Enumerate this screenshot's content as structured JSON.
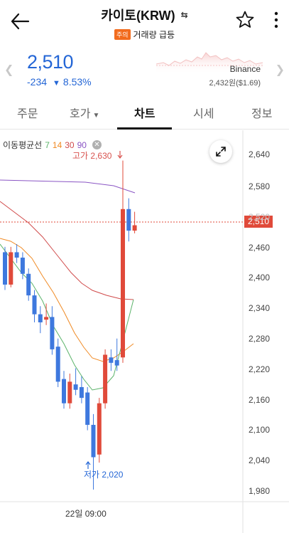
{
  "header": {
    "title": "카이토(KRW)",
    "warning_badge": "주의",
    "subtitle": "거래량 급등"
  },
  "price_panel": {
    "price": "2,510",
    "change": "-234",
    "change_percent": "8.53%",
    "exchange": "Binance",
    "exchange_price": "2,432원($1.69)",
    "color_down": "#2466d6"
  },
  "tabs": [
    {
      "label": "주문",
      "active": false
    },
    {
      "label": "호가",
      "active": false,
      "has_dropdown": true
    },
    {
      "label": "차트",
      "active": true
    },
    {
      "label": "시세",
      "active": false
    },
    {
      "label": "정보",
      "active": false
    }
  ],
  "chart": {
    "ma_legend": {
      "title": "이동평균선",
      "periods": [
        "7",
        "14",
        "30",
        "90"
      ]
    },
    "high_label": "고가 2,630",
    "low_label": "저가 2,020",
    "current_price_tag": "2,510",
    "y_ticks": [
      "2,640",
      "2,580",
      "2,520",
      "2,460",
      "2,400",
      "2,340",
      "2,280",
      "2,220",
      "2,160",
      "2,100",
      "2,040",
      "1,980"
    ],
    "x_tick": "22일 09:00"
  },
  "chart_data": {
    "type": "candlestick",
    "ylim": [
      1960,
      2680
    ],
    "up_color": "#e04a3a",
    "down_color": "#3e78de",
    "candles": [
      {
        "o": 2460,
        "c": 2400,
        "h": 2470,
        "l": 2390
      },
      {
        "o": 2400,
        "c": 2460,
        "h": 2470,
        "l": 2395
      },
      {
        "o": 2460,
        "c": 2450,
        "h": 2475,
        "l": 2440
      },
      {
        "o": 2450,
        "c": 2420,
        "h": 2460,
        "l": 2410
      },
      {
        "o": 2420,
        "c": 2380,
        "h": 2430,
        "l": 2370
      },
      {
        "o": 2380,
        "c": 2345,
        "h": 2390,
        "l": 2330
      },
      {
        "o": 2345,
        "c": 2330,
        "h": 2360,
        "l": 2310
      },
      {
        "o": 2335,
        "c": 2340,
        "h": 2365,
        "l": 2325
      },
      {
        "o": 2340,
        "c": 2280,
        "h": 2360,
        "l": 2270
      },
      {
        "o": 2285,
        "c": 2220,
        "h": 2300,
        "l": 2210
      },
      {
        "o": 2225,
        "c": 2180,
        "h": 2240,
        "l": 2170
      },
      {
        "o": 2180,
        "c": 2220,
        "h": 2235,
        "l": 2170
      },
      {
        "o": 2215,
        "c": 2205,
        "h": 2245,
        "l": 2195
      },
      {
        "o": 2210,
        "c": 2190,
        "h": 2230,
        "l": 2180
      },
      {
        "o": 2200,
        "c": 2140,
        "h": 2210,
        "l": 2130
      },
      {
        "o": 2140,
        "c": 2080,
        "h": 2160,
        "l": 2020
      },
      {
        "o": 2085,
        "c": 2180,
        "h": 2190,
        "l": 2070
      },
      {
        "o": 2180,
        "c": 2270,
        "h": 2280,
        "l": 2170
      },
      {
        "o": 2265,
        "c": 2255,
        "h": 2280,
        "l": 2240
      },
      {
        "o": 2260,
        "c": 2250,
        "h": 2300,
        "l": 2240
      },
      {
        "o": 2265,
        "c": 2540,
        "h": 2630,
        "l": 2255
      },
      {
        "o": 2540,
        "c": 2500,
        "h": 2560,
        "l": 2480
      },
      {
        "o": 2500,
        "c": 2510,
        "h": 2535,
        "l": 2495
      }
    ]
  }
}
